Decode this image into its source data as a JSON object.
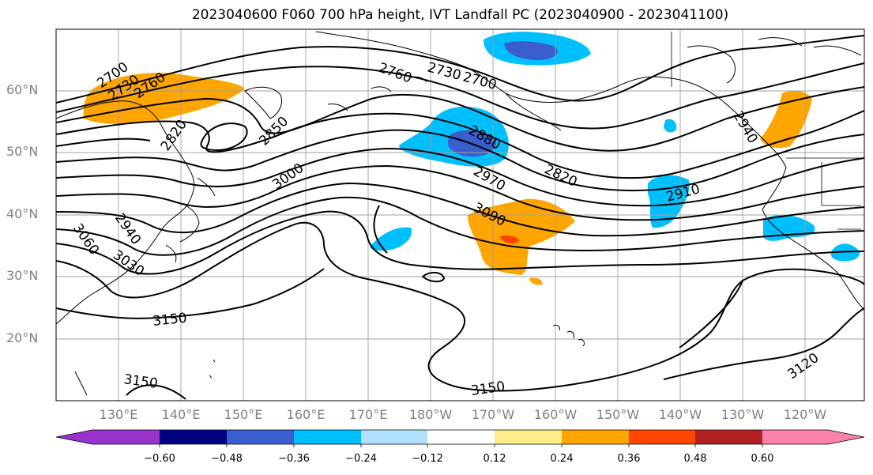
{
  "title": "2023040600 F060 700 hPa height, IVT Landfall PC (2023040900 - 2023041100)",
  "lat_labels": [
    "60°N",
    "50°N",
    "40°N",
    "30°N",
    "20°N"
  ],
  "lon_labels": [
    "130°E",
    "140°E",
    "150°E",
    "160°E",
    "170°E",
    "180°W",
    "170°W",
    "160°W",
    "150°W",
    "140°W",
    "130°W",
    "120°W"
  ],
  "contour_labels": [
    "2700",
    "2730",
    "2760",
    "2760",
    "2730",
    "2700",
    "2820",
    "2850",
    "3000",
    "2880",
    "2970",
    "2820",
    "2910",
    "3090",
    "2940",
    "3060",
    "3030",
    "3150",
    "3150",
    "3150",
    "3120",
    "2940"
  ],
  "colorbar": {
    "ticks": [
      "−0.60",
      "−0.48",
      "−0.36",
      "−0.24",
      "−0.12",
      "0.12",
      "0.24",
      "0.36",
      "0.48",
      "0.60"
    ],
    "colors": [
      "#9933cc",
      "#000080",
      "#3a5fcd",
      "#00bfff",
      "#b0e2ff",
      "#ffffff",
      "#ffec8b",
      "#ffa500",
      "#ff4500",
      "#b22222",
      "#ff82ab"
    ]
  }
}
